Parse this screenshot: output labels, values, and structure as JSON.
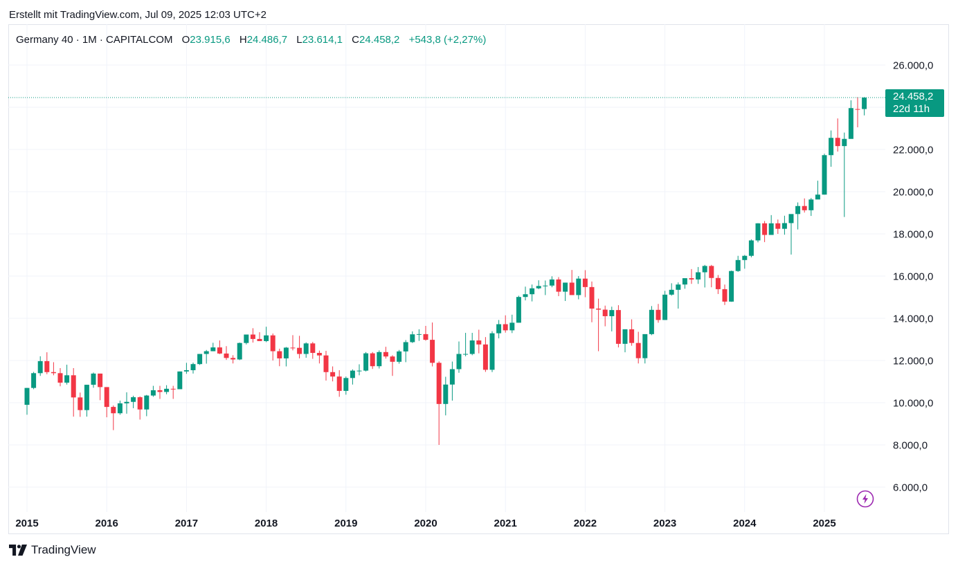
{
  "header": {
    "created_text": "Erstellt mit TradingView.com, Jul 09, 2025 12:03 UTC+2"
  },
  "legend": {
    "symbol": "Germany 40 · 1M · CAPITALCOM",
    "open_label": "O",
    "open": "23.915,6",
    "high_label": "H",
    "high": "24.486,7",
    "low_label": "L",
    "low": "23.614,1",
    "close_label": "C",
    "close": "24.458,2",
    "change": "+543,8 (+2,27%)"
  },
  "price_tag": {
    "price": "24.458,2",
    "countdown": "22d 11h"
  },
  "footer": {
    "brand": "TradingView"
  },
  "icons": {
    "logo": "tradingview-logo-icon",
    "bolt": "lightning-bolt-icon"
  },
  "colors": {
    "up": "#089981",
    "down": "#f23645",
    "grid": "#f0f3fa",
    "accent_bolt": "#9c27b0"
  },
  "chart_data": {
    "type": "candlestick",
    "interval": "1M",
    "y_axis": {
      "ticks": [
        26000,
        24000,
        22000,
        20000,
        18000,
        16000,
        14000,
        12000,
        10000,
        8000,
        6000
      ],
      "labels": [
        "26.000,0",
        "",
        "22.000,0",
        "20.000,0",
        "18.000,0",
        "16.000,0",
        "14.000,0",
        "12.000,0",
        "10.000,0",
        "8.000,0",
        "6.000,0"
      ],
      "range": [
        5200,
        26800
      ],
      "position": "right"
    },
    "x_axis": {
      "labels": [
        "2015",
        "2016",
        "2017",
        "2018",
        "2019",
        "2020",
        "2021",
        "2022",
        "2023",
        "2024",
        "2025"
      ],
      "start": "2015-01",
      "end": "2025-07"
    },
    "last_price": 24458.2,
    "candles": [
      [
        "2015-01",
        9900,
        10700,
        9430,
        10700
      ],
      [
        "2015-02",
        10700,
        11460,
        10640,
        11400
      ],
      [
        "2015-03",
        11400,
        12200,
        11270,
        11970
      ],
      [
        "2015-04",
        11970,
        12390,
        11350,
        11450
      ],
      [
        "2015-05",
        11450,
        11920,
        11300,
        11400
      ],
      [
        "2015-06",
        11400,
        11640,
        10780,
        10950
      ],
      [
        "2015-07",
        10950,
        11800,
        10860,
        11300
      ],
      [
        "2015-08",
        11300,
        11640,
        9340,
        10250
      ],
      [
        "2015-09",
        10250,
        10480,
        9330,
        9650
      ],
      [
        "2015-10",
        9650,
        10850,
        9340,
        10850
      ],
      [
        "2015-11",
        10850,
        11430,
        10710,
        11380
      ],
      [
        "2015-12",
        11380,
        11380,
        10120,
        10740
      ],
      [
        "2016-01",
        10740,
        10740,
        9310,
        9800
      ],
      [
        "2016-02",
        9800,
        9870,
        8700,
        9500
      ],
      [
        "2016-03",
        9500,
        10100,
        9430,
        9970
      ],
      [
        "2016-04",
        9970,
        10490,
        9480,
        10040
      ],
      [
        "2016-05",
        10040,
        10330,
        9740,
        10260
      ],
      [
        "2016-06",
        10260,
        10300,
        9200,
        9680
      ],
      [
        "2016-07",
        9680,
        10370,
        9360,
        10340
      ],
      [
        "2016-08",
        10340,
        10800,
        10280,
        10590
      ],
      [
        "2016-09",
        10590,
        10800,
        10180,
        10510
      ],
      [
        "2016-10",
        10510,
        10830,
        10400,
        10660
      ],
      [
        "2016-11",
        10660,
        10800,
        10180,
        10640
      ],
      [
        "2016-12",
        10640,
        11480,
        10640,
        11480
      ],
      [
        "2017-01",
        11480,
        11890,
        11370,
        11540
      ],
      [
        "2017-02",
        11540,
        11900,
        11380,
        11830
      ],
      [
        "2017-03",
        11830,
        12310,
        11790,
        12310
      ],
      [
        "2017-04",
        12310,
        12500,
        11850,
        12440
      ],
      [
        "2017-05",
        12440,
        12840,
        12440,
        12620
      ],
      [
        "2017-06",
        12620,
        12950,
        12300,
        12330
      ],
      [
        "2017-07",
        12330,
        12680,
        12030,
        12120
      ],
      [
        "2017-08",
        12120,
        12250,
        11860,
        12050
      ],
      [
        "2017-09",
        12050,
        12850,
        12020,
        12830
      ],
      [
        "2017-10",
        12830,
        13230,
        12760,
        13230
      ],
      [
        "2017-11",
        13230,
        13530,
        12850,
        13020
      ],
      [
        "2017-12",
        13020,
        13340,
        12950,
        12920
      ],
      [
        "2018-01",
        12920,
        13600,
        12870,
        13190
      ],
      [
        "2018-02",
        13190,
        13280,
        12000,
        12440
      ],
      [
        "2018-03",
        12440,
        12560,
        11730,
        12100
      ],
      [
        "2018-04",
        12100,
        12640,
        11720,
        12610
      ],
      [
        "2018-05",
        12610,
        13200,
        12480,
        12600
      ],
      [
        "2018-06",
        12600,
        13170,
        12100,
        12310
      ],
      [
        "2018-07",
        12310,
        12860,
        12130,
        12810
      ],
      [
        "2018-08",
        12810,
        12880,
        12080,
        12360
      ],
      [
        "2018-09",
        12360,
        12470,
        11860,
        12240
      ],
      [
        "2018-10",
        12240,
        12460,
        11050,
        11450
      ],
      [
        "2018-11",
        11450,
        11720,
        11010,
        11240
      ],
      [
        "2018-12",
        11240,
        11540,
        10280,
        10560
      ],
      [
        "2019-01",
        10560,
        11240,
        10380,
        11170
      ],
      [
        "2019-02",
        11170,
        11580,
        10860,
        11520
      ],
      [
        "2019-03",
        11520,
        11820,
        11300,
        11520
      ],
      [
        "2019-04",
        11520,
        12400,
        11480,
        12340
      ],
      [
        "2019-05",
        12340,
        12400,
        11600,
        11730
      ],
      [
        "2019-06",
        11730,
        12480,
        11620,
        12400
      ],
      [
        "2019-07",
        12400,
        12650,
        12090,
        12190
      ],
      [
        "2019-08",
        12190,
        12250,
        11270,
        11940
      ],
      [
        "2019-09",
        11940,
        12500,
        11850,
        12430
      ],
      [
        "2019-10",
        12430,
        12970,
        11920,
        12870
      ],
      [
        "2019-11",
        12870,
        13380,
        12830,
        13240
      ],
      [
        "2019-12",
        13240,
        13480,
        12930,
        13250
      ],
      [
        "2020-01",
        13250,
        13640,
        12940,
        12980
      ],
      [
        "2020-02",
        12980,
        13800,
        11720,
        11890
      ],
      [
        "2020-03",
        11890,
        11960,
        8000,
        9940
      ],
      [
        "2020-04",
        9940,
        11230,
        9400,
        10860
      ],
      [
        "2020-05",
        10860,
        11950,
        10100,
        11590
      ],
      [
        "2020-06",
        11590,
        12900,
        11420,
        12310
      ],
      [
        "2020-07",
        12310,
        13310,
        12200,
        12310
      ],
      [
        "2020-08",
        12310,
        13310,
        12250,
        12950
      ],
      [
        "2020-09",
        12950,
        13460,
        12340,
        12760
      ],
      [
        "2020-10",
        12760,
        13110,
        11460,
        11560
      ],
      [
        "2020-11",
        11560,
        13390,
        11450,
        13290
      ],
      [
        "2020-12",
        13290,
        13920,
        13050,
        13720
      ],
      [
        "2021-01",
        13720,
        14140,
        13320,
        13430
      ],
      [
        "2021-02",
        13430,
        14170,
        13300,
        13790
      ],
      [
        "2021-03",
        13790,
        15070,
        13790,
        15010
      ],
      [
        "2021-04",
        15010,
        15500,
        14850,
        15140
      ],
      [
        "2021-05",
        15140,
        15600,
        14800,
        15420
      ],
      [
        "2021-06",
        15420,
        15800,
        15380,
        15530
      ],
      [
        "2021-07",
        15530,
        15790,
        15100,
        15550
      ],
      [
        "2021-08",
        15550,
        15990,
        15470,
        15840
      ],
      [
        "2021-09",
        15840,
        15950,
        15050,
        15260
      ],
      [
        "2021-10",
        15260,
        15690,
        14820,
        15690
      ],
      [
        "2021-11",
        15690,
        16290,
        15150,
        15100
      ],
      [
        "2021-12",
        15100,
        16000,
        14900,
        15880
      ],
      [
        "2022-01",
        15880,
        16280,
        15000,
        15480
      ],
      [
        "2022-02",
        15480,
        15740,
        13810,
        14460
      ],
      [
        "2022-03",
        14460,
        14930,
        12440,
        14410
      ],
      [
        "2022-04",
        14410,
        14600,
        13620,
        14100
      ],
      [
        "2022-05",
        14100,
        14550,
        13380,
        14390
      ],
      [
        "2022-06",
        14390,
        14620,
        12620,
        12790
      ],
      [
        "2022-07",
        12790,
        13350,
        12390,
        13480
      ],
      [
        "2022-08",
        13480,
        13950,
        12700,
        12830
      ],
      [
        "2022-09",
        12830,
        13360,
        11860,
        12110
      ],
      [
        "2022-10",
        12110,
        13240,
        11860,
        13250
      ],
      [
        "2022-11",
        13250,
        14580,
        13200,
        14400
      ],
      [
        "2022-12",
        14400,
        14680,
        13790,
        13920
      ],
      [
        "2023-01",
        13920,
        15300,
        13920,
        15120
      ],
      [
        "2023-02",
        15120,
        15660,
        15070,
        15350
      ],
      [
        "2023-03",
        15350,
        15700,
        14460,
        15600
      ],
      [
        "2023-04",
        15600,
        15900,
        15400,
        15900
      ],
      [
        "2023-05",
        15900,
        16330,
        15630,
        15840
      ],
      [
        "2023-06",
        15840,
        16430,
        15630,
        16180
      ],
      [
        "2023-07",
        16180,
        16530,
        15460,
        16480
      ],
      [
        "2023-08",
        16480,
        16530,
        15470,
        15910
      ],
      [
        "2023-09",
        15910,
        16050,
        15150,
        15380
      ],
      [
        "2023-10",
        15380,
        15600,
        14630,
        14790
      ],
      [
        "2023-11",
        14790,
        16260,
        14780,
        16240
      ],
      [
        "2023-12",
        16240,
        16960,
        16200,
        16760
      ],
      [
        "2024-01",
        16760,
        17000,
        16350,
        16960
      ],
      [
        "2024-02",
        16960,
        17740,
        16890,
        17690
      ],
      [
        "2024-03",
        17690,
        18510,
        17600,
        18500
      ],
      [
        "2024-04",
        18500,
        18610,
        17610,
        17950
      ],
      [
        "2024-05",
        17950,
        18890,
        17950,
        18500
      ],
      [
        "2024-06",
        18500,
        18680,
        18000,
        18240
      ],
      [
        "2024-07",
        18240,
        18860,
        17960,
        18510
      ],
      [
        "2024-08",
        18510,
        18930,
        17020,
        18940
      ],
      [
        "2024-09",
        18940,
        19490,
        18210,
        19320
      ],
      [
        "2024-10",
        19320,
        19680,
        19010,
        19120
      ],
      [
        "2024-11",
        19120,
        19700,
        18850,
        19630
      ],
      [
        "2024-12",
        19630,
        20520,
        19650,
        19860
      ],
      [
        "2025-01",
        19860,
        21800,
        19860,
        21730
      ],
      [
        "2025-02",
        21730,
        22900,
        21180,
        22550
      ],
      [
        "2025-03",
        22550,
        23470,
        21900,
        22160
      ],
      [
        "2025-04",
        22160,
        22800,
        18800,
        22500
      ],
      [
        "2025-05",
        22500,
        24330,
        22600,
        23960
      ],
      [
        "2025-06",
        23915,
        24480,
        23050,
        23910
      ],
      [
        "2025-07",
        23915,
        24487,
        23614,
        24458
      ]
    ]
  }
}
